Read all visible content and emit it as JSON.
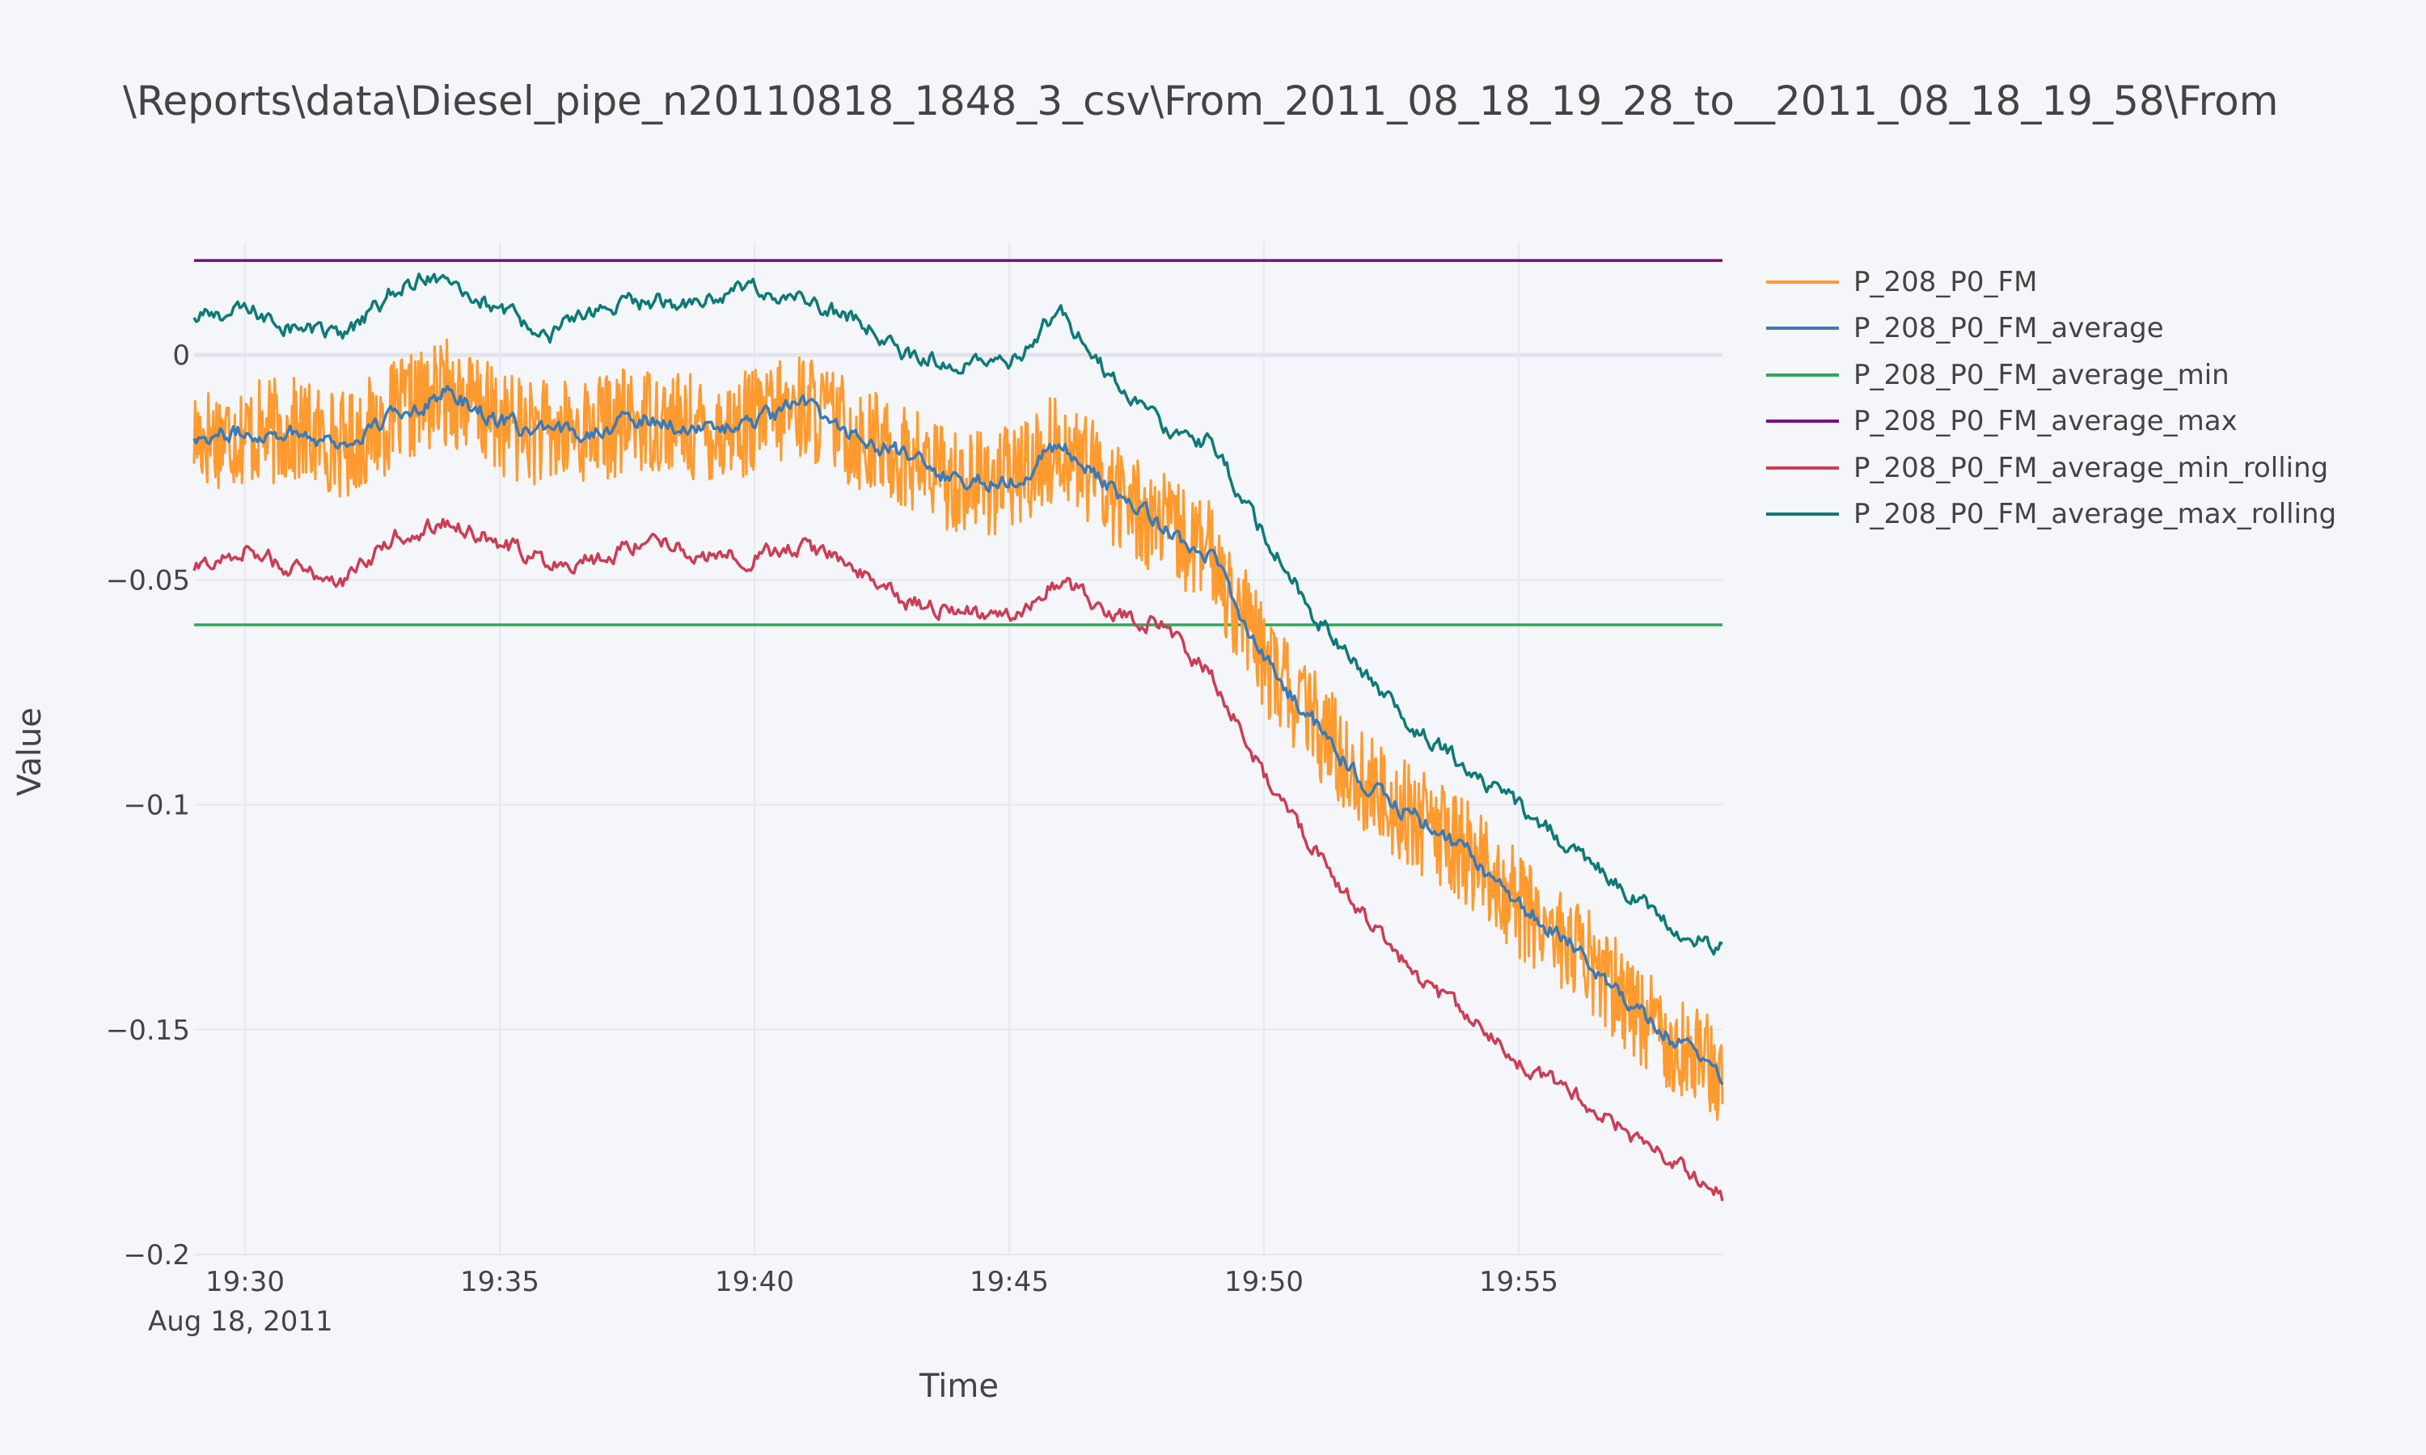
{
  "title": "\\Reports\\data\\Diesel_pipe_n20110818_1848_3_csv\\From_2011_08_18_19_28_to__2011_08_18_19_58\\From",
  "chart_data": {
    "type": "line",
    "title": "\\Reports\\data\\Diesel_pipe_n20110818_1848_3_csv\\From_2011_08_18_19_28_to__2011_08_18_19_58\\From",
    "xlabel": "Time",
    "ylabel": "Value",
    "x_range": [
      "19:29",
      "19:59"
    ],
    "ylim": [
      -0.2,
      0.025
    ],
    "x_ticks": [
      "19:30",
      "19:35",
      "19:40",
      "19:45",
      "19:50",
      "19:55"
    ],
    "x_ticks_date": "Aug 18, 2011",
    "y_ticks": [
      {
        "value": 0,
        "label": "0"
      },
      {
        "value": -0.05,
        "label": "−0.05"
      },
      {
        "value": -0.1,
        "label": "−0.1"
      },
      {
        "value": -0.15,
        "label": "−0.15"
      },
      {
        "value": -0.2,
        "label": "−0.2"
      }
    ],
    "grid": true,
    "legend": "right",
    "series": [
      {
        "name": "P_208_P0_FM",
        "color": "#ff9a2e",
        "noise": 0.012,
        "points": [
          [
            "19:29",
            -0.018
          ],
          [
            "19:31",
            -0.017
          ],
          [
            "19:32",
            -0.02
          ],
          [
            "19:33",
            -0.013
          ],
          [
            "19:34",
            -0.008
          ],
          [
            "19:35",
            -0.015
          ],
          [
            "19:36",
            -0.018
          ],
          [
            "19:37",
            -0.016
          ],
          [
            "19:38",
            -0.014
          ],
          [
            "19:39",
            -0.017
          ],
          [
            "19:40",
            -0.015
          ],
          [
            "19:41",
            -0.011
          ],
          [
            "19:42",
            -0.018
          ],
          [
            "19:43",
            -0.023
          ],
          [
            "19:44",
            -0.028
          ],
          [
            "19:45",
            -0.028
          ],
          [
            "19:46",
            -0.02
          ],
          [
            "19:47",
            -0.03
          ],
          [
            "19:48",
            -0.038
          ],
          [
            "19:49",
            -0.045
          ],
          [
            "19:50",
            -0.068
          ],
          [
            "19:51",
            -0.082
          ],
          [
            "19:52",
            -0.096
          ],
          [
            "19:53",
            -0.103
          ],
          [
            "19:54",
            -0.111
          ],
          [
            "19:55",
            -0.122
          ],
          [
            "19:56",
            -0.131
          ],
          [
            "19:57",
            -0.142
          ],
          [
            "19:58",
            -0.152
          ],
          [
            "19:59",
            -0.16
          ]
        ]
      },
      {
        "name": "P_208_P0_FM_average",
        "color": "#3a7ab8",
        "noise": 0.004,
        "points": [
          [
            "19:29",
            -0.018
          ],
          [
            "19:31",
            -0.017
          ],
          [
            "19:32",
            -0.02
          ],
          [
            "19:33",
            -0.013
          ],
          [
            "19:34",
            -0.008
          ],
          [
            "19:35",
            -0.015
          ],
          [
            "19:36",
            -0.018
          ],
          [
            "19:37",
            -0.016
          ],
          [
            "19:38",
            -0.014
          ],
          [
            "19:39",
            -0.017
          ],
          [
            "19:40",
            -0.015
          ],
          [
            "19:41",
            -0.011
          ],
          [
            "19:42",
            -0.018
          ],
          [
            "19:43",
            -0.023
          ],
          [
            "19:44",
            -0.028
          ],
          [
            "19:45",
            -0.028
          ],
          [
            "19:46",
            -0.02
          ],
          [
            "19:47",
            -0.03
          ],
          [
            "19:48",
            -0.038
          ],
          [
            "19:49",
            -0.045
          ],
          [
            "19:50",
            -0.068
          ],
          [
            "19:51",
            -0.082
          ],
          [
            "19:52",
            -0.096
          ],
          [
            "19:53",
            -0.103
          ],
          [
            "19:54",
            -0.111
          ],
          [
            "19:55",
            -0.122
          ],
          [
            "19:56",
            -0.131
          ],
          [
            "19:57",
            -0.142
          ],
          [
            "19:58",
            -0.152
          ],
          [
            "19:59",
            -0.16
          ]
        ]
      },
      {
        "name": "P_208_P0_FM_average_min",
        "color": "#2ca858",
        "noise": 0,
        "points": [
          [
            "19:29",
            -0.06
          ],
          [
            "19:59",
            -0.06
          ]
        ]
      },
      {
        "name": "P_208_P0_FM_average_max",
        "color": "#7a0e7e",
        "noise": 0,
        "points": [
          [
            "19:29",
            0.021
          ],
          [
            "19:59",
            0.021
          ]
        ]
      },
      {
        "name": "P_208_P0_FM_average_min_rolling",
        "color": "#cc3d55",
        "noise": 0.004,
        "points": [
          [
            "19:29",
            -0.048
          ],
          [
            "19:30",
            -0.043
          ],
          [
            "19:31",
            -0.048
          ],
          [
            "19:32",
            -0.05
          ],
          [
            "19:33",
            -0.04
          ],
          [
            "19:34",
            -0.037
          ],
          [
            "19:35",
            -0.042
          ],
          [
            "19:36",
            -0.046
          ],
          [
            "19:37",
            -0.045
          ],
          [
            "19:38",
            -0.04
          ],
          [
            "19:39",
            -0.045
          ],
          [
            "19:40",
            -0.045
          ],
          [
            "19:41",
            -0.042
          ],
          [
            "19:42",
            -0.048
          ],
          [
            "19:43",
            -0.055
          ],
          [
            "19:44",
            -0.057
          ],
          [
            "19:45",
            -0.058
          ],
          [
            "19:46",
            -0.05
          ],
          [
            "19:47",
            -0.057
          ],
          [
            "19:48",
            -0.06
          ],
          [
            "19:49",
            -0.072
          ],
          [
            "19:50",
            -0.093
          ],
          [
            "19:51",
            -0.11
          ],
          [
            "19:52",
            -0.125
          ],
          [
            "19:53",
            -0.138
          ],
          [
            "19:54",
            -0.148
          ],
          [
            "19:55",
            -0.157
          ],
          [
            "19:56",
            -0.164
          ],
          [
            "19:57",
            -0.172
          ],
          [
            "19:58",
            -0.18
          ],
          [
            "19:59",
            -0.187
          ]
        ]
      },
      {
        "name": "P_208_P0_FM_average_max_rolling",
        "color": "#0d7a78",
        "noise": 0.004,
        "points": [
          [
            "19:29",
            0.008
          ],
          [
            "19:30",
            0.01
          ],
          [
            "19:31",
            0.006
          ],
          [
            "19:32",
            0.004
          ],
          [
            "19:33",
            0.015
          ],
          [
            "19:34",
            0.018
          ],
          [
            "19:35",
            0.009
          ],
          [
            "19:36",
            0.005
          ],
          [
            "19:37",
            0.01
          ],
          [
            "19:38",
            0.012
          ],
          [
            "19:39",
            0.012
          ],
          [
            "19:40",
            0.015
          ],
          [
            "19:41",
            0.012
          ],
          [
            "19:42",
            0.008
          ],
          [
            "19:43",
            0.0
          ],
          [
            "19:44",
            -0.002
          ],
          [
            "19:45",
            -0.002
          ],
          [
            "19:46",
            0.01
          ],
          [
            "19:47",
            -0.005
          ],
          [
            "19:48",
            -0.015
          ],
          [
            "19:49",
            -0.02
          ],
          [
            "19:50",
            -0.04
          ],
          [
            "19:51",
            -0.058
          ],
          [
            "19:52",
            -0.072
          ],
          [
            "19:53",
            -0.083
          ],
          [
            "19:54",
            -0.092
          ],
          [
            "19:55",
            -0.1
          ],
          [
            "19:56",
            -0.11
          ],
          [
            "19:57",
            -0.118
          ],
          [
            "19:58",
            -0.127
          ],
          [
            "19:59",
            -0.132
          ]
        ]
      }
    ]
  }
}
